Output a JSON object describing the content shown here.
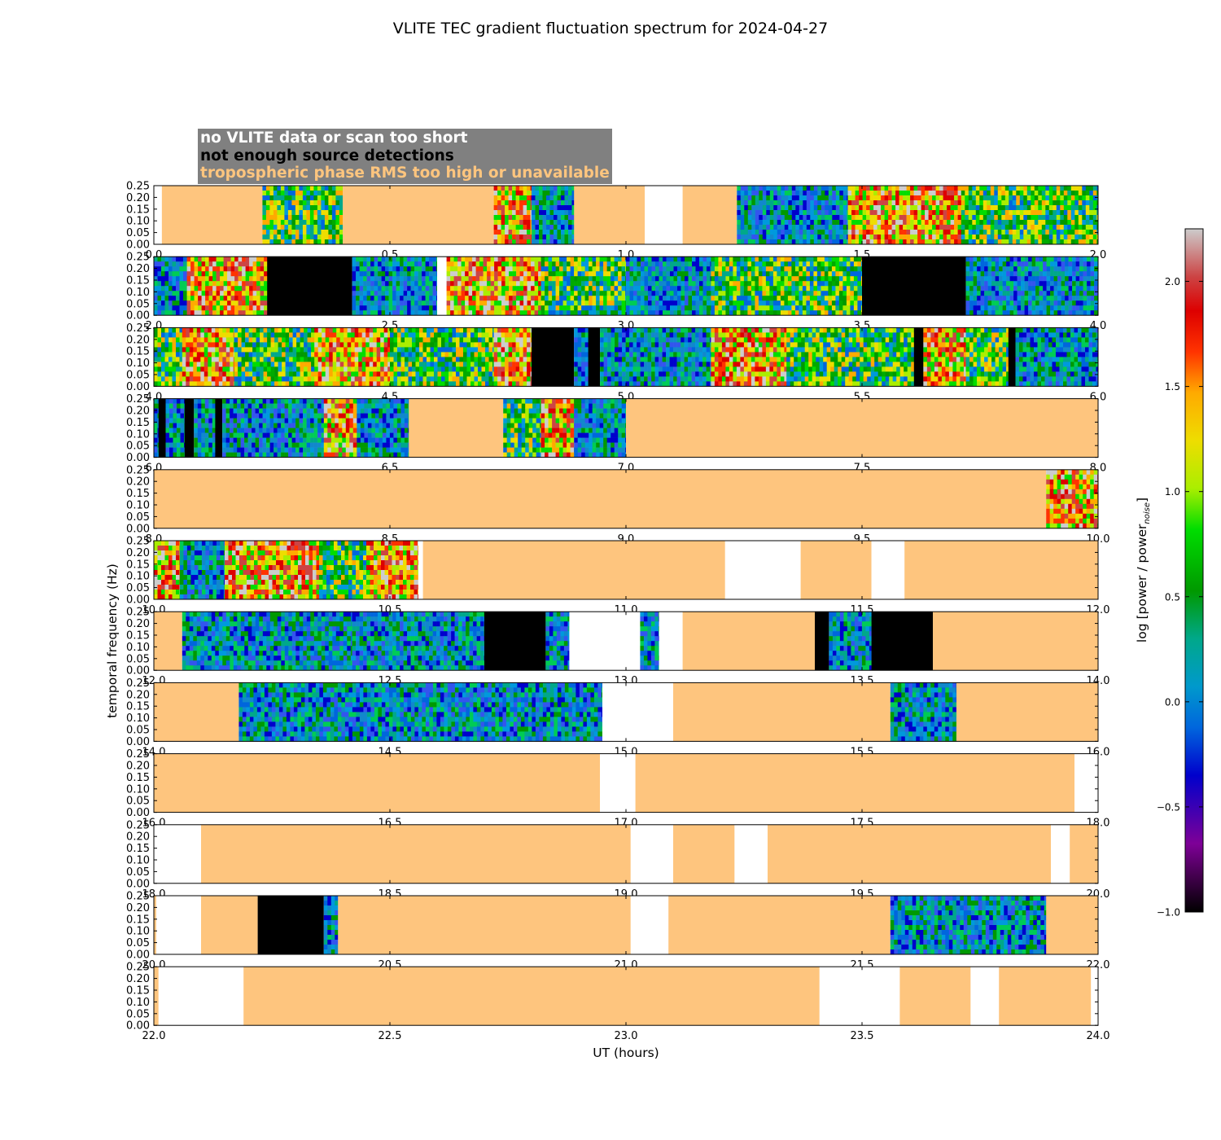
{
  "title": "VLITE TEC gradient fluctuation spectrum for 2024-04-27",
  "legend": [
    {
      "label": "no VLITE data or scan too short",
      "color": "#ffffff"
    },
    {
      "label": "not enough source detections",
      "color": "#000000"
    },
    {
      "label": "tropospheric phase RMS too high or unavailable",
      "color": "#fec57e"
    }
  ],
  "chart_data": {
    "type": "heatmap",
    "title": "VLITE TEC gradient fluctuation spectrum for 2024-04-27",
    "xlabel": "UT (hours)",
    "ylabel": "temporal frequency (Hz)",
    "ylim": [
      0,
      0.25
    ],
    "y_ticks": [
      "0.00",
      "0.05",
      "0.10",
      "0.15",
      "0.20",
      "0.25"
    ],
    "colorbar": {
      "label": "log [power / power",
      "label_sub": "noise",
      "label_end": "]",
      "range": [
        -1.0,
        2.25
      ],
      "ticks": [
        "−1.0",
        "−0.5",
        "0.0",
        "0.5",
        "1.0",
        "1.5",
        "2.0"
      ],
      "tick_values": [
        -1.0,
        -0.5,
        0.0,
        0.5,
        1.0,
        1.5,
        2.0
      ]
    },
    "state_colors": {
      "no_data": "#ffffff",
      "no_detections": "#000000",
      "tropo": "#fec57e"
    },
    "panels": [
      {
        "x_start": 0,
        "x_end": 2,
        "x_ticks": [
          "0.0",
          "0.5",
          "1.0",
          "1.5",
          "2.0"
        ],
        "segments": [
          [
            "nodata",
            0,
            0.017
          ],
          [
            "tropo",
            0.017,
            0.23
          ],
          [
            "data",
            0.23,
            0.4,
            1
          ],
          [
            "tropo",
            0.4,
            0.72
          ],
          [
            "data",
            0.72,
            0.8,
            2
          ],
          [
            "data",
            0.8,
            0.89,
            0
          ],
          [
            "tropo",
            0.89,
            1.04
          ],
          [
            "nodata",
            1.04,
            1.12
          ],
          [
            "tropo",
            1.12,
            1.235
          ],
          [
            "data",
            1.235,
            1.47,
            0
          ],
          [
            "data",
            1.47,
            1.71,
            2
          ],
          [
            "data",
            1.71,
            2.0,
            1
          ]
        ]
      },
      {
        "x_start": 2,
        "x_end": 4,
        "x_ticks": [
          "2.0",
          "2.5",
          "3.0",
          "3.5",
          "4.0"
        ],
        "segments": [
          [
            "data",
            2.0,
            2.07,
            0
          ],
          [
            "data",
            2.07,
            2.24,
            2
          ],
          [
            "nodet",
            2.24,
            2.42
          ],
          [
            "data",
            2.42,
            2.6,
            0
          ],
          [
            "nodata",
            2.6,
            2.62
          ],
          [
            "data",
            2.62,
            2.82,
            2
          ],
          [
            "data",
            2.82,
            3.0,
            1
          ],
          [
            "data",
            3.0,
            3.18,
            0
          ],
          [
            "data",
            3.18,
            3.5,
            1
          ],
          [
            "nodet",
            3.5,
            3.72
          ],
          [
            "data",
            3.72,
            4.0,
            0
          ]
        ]
      },
      {
        "x_start": 4,
        "x_end": 6,
        "x_ticks": [
          "4.0",
          "4.5",
          "5.0",
          "5.5",
          "6.0"
        ],
        "segments": [
          [
            "data",
            4.0,
            4.06,
            1
          ],
          [
            "data",
            4.06,
            4.17,
            2
          ],
          [
            "data",
            4.17,
            4.34,
            1
          ],
          [
            "data",
            4.34,
            4.5,
            2
          ],
          [
            "data",
            4.5,
            4.72,
            1
          ],
          [
            "data",
            4.72,
            4.8,
            2
          ],
          [
            "nodet",
            4.8,
            4.89
          ],
          [
            "data",
            4.89,
            4.92,
            0
          ],
          [
            "nodet",
            4.92,
            4.945
          ],
          [
            "data",
            4.945,
            5.18,
            0
          ],
          [
            "data",
            5.18,
            5.34,
            2
          ],
          [
            "data",
            5.34,
            5.61,
            1
          ],
          [
            "nodet",
            5.61,
            5.63
          ],
          [
            "data",
            5.63,
            5.72,
            2
          ],
          [
            "data",
            5.72,
            5.81,
            1
          ],
          [
            "nodet",
            5.81,
            5.825
          ],
          [
            "data",
            5.825,
            6.0,
            0
          ]
        ]
      },
      {
        "x_start": 6,
        "x_end": 8,
        "x_ticks": [
          "6.0",
          "6.5",
          "7.0",
          "7.5",
          "8.0"
        ],
        "segments": [
          [
            "data",
            6.0,
            6.01,
            0
          ],
          [
            "nodet",
            6.01,
            6.025
          ],
          [
            "data",
            6.025,
            6.065,
            0
          ],
          [
            "nodet",
            6.065,
            6.085
          ],
          [
            "data",
            6.085,
            6.13,
            0
          ],
          [
            "nodet",
            6.13,
            6.145
          ],
          [
            "data",
            6.145,
            6.36,
            0
          ],
          [
            "data",
            6.36,
            6.43,
            2
          ],
          [
            "data",
            6.43,
            6.54,
            0
          ],
          [
            "tropo",
            6.54,
            6.74
          ],
          [
            "data",
            6.74,
            6.82,
            1
          ],
          [
            "data",
            6.82,
            6.89,
            2
          ],
          [
            "data",
            6.89,
            7.0,
            0
          ],
          [
            "tropo",
            7.0,
            8.0
          ]
        ]
      },
      {
        "x_start": 8,
        "x_end": 10,
        "x_ticks": [
          "8.0",
          "8.5",
          "9.0",
          "9.5",
          "10.0"
        ],
        "segments": [
          [
            "tropo",
            8.0,
            9.89
          ],
          [
            "data",
            9.89,
            10.0,
            2
          ]
        ]
      },
      {
        "x_start": 10,
        "x_end": 12,
        "x_ticks": [
          "10.0",
          "10.5",
          "11.0",
          "11.5",
          "12.0"
        ],
        "segments": [
          [
            "data",
            10.0,
            10.055,
            2
          ],
          [
            "data",
            10.055,
            10.15,
            0
          ],
          [
            "data",
            10.15,
            10.35,
            2
          ],
          [
            "data",
            10.35,
            10.45,
            1
          ],
          [
            "data",
            10.45,
            10.56,
            2
          ],
          [
            "nodata",
            10.56,
            10.57
          ],
          [
            "tropo",
            10.57,
            11.21
          ],
          [
            "nodata",
            11.21,
            11.37
          ],
          [
            "tropo",
            11.37,
            11.52
          ],
          [
            "nodata",
            11.52,
            11.59
          ],
          [
            "tropo",
            11.59,
            12.0
          ]
        ]
      },
      {
        "x_start": 12,
        "x_end": 14,
        "x_ticks": [
          "12.0",
          "12.5",
          "13.0",
          "13.5",
          "14.0"
        ],
        "segments": [
          [
            "tropo",
            12.0,
            12.06
          ],
          [
            "data",
            12.06,
            12.42,
            0
          ],
          [
            "data",
            12.42,
            12.7,
            0
          ],
          [
            "nodet",
            12.7,
            12.83
          ],
          [
            "data",
            12.83,
            12.88,
            0
          ],
          [
            "nodata",
            12.88,
            13.03
          ],
          [
            "data",
            13.03,
            13.07,
            0
          ],
          [
            "nodata",
            13.07,
            13.12
          ],
          [
            "tropo",
            13.12,
            13.4
          ],
          [
            "nodet",
            13.4,
            13.43
          ],
          [
            "data",
            13.43,
            13.52,
            0
          ],
          [
            "nodet",
            13.52,
            13.65
          ],
          [
            "tropo",
            13.65,
            14.0
          ]
        ]
      },
      {
        "x_start": 14,
        "x_end": 16,
        "x_ticks": [
          "14.0",
          "14.5",
          "15.0",
          "15.5",
          "16.0"
        ],
        "segments": [
          [
            "tropo",
            14.0,
            14.18
          ],
          [
            "data",
            14.18,
            14.95,
            0
          ],
          [
            "nodata",
            14.95,
            15.1
          ],
          [
            "tropo",
            15.1,
            15.56
          ],
          [
            "data",
            15.56,
            15.7,
            0
          ],
          [
            "tropo",
            15.7,
            16.0
          ]
        ]
      },
      {
        "x_start": 16,
        "x_end": 18,
        "x_ticks": [
          "16.0",
          "16.5",
          "17.0",
          "17.5",
          "18.0"
        ],
        "segments": [
          [
            "tropo",
            16.0,
            16.945
          ],
          [
            "nodata",
            16.945,
            17.02
          ],
          [
            "tropo",
            17.02,
            17.95
          ],
          [
            "nodata",
            17.95,
            18.0
          ]
        ]
      },
      {
        "x_start": 18,
        "x_end": 20,
        "x_ticks": [
          "18.0",
          "18.5",
          "19.0",
          "19.5",
          "20.0"
        ],
        "segments": [
          [
            "nodata",
            18.0,
            18.1
          ],
          [
            "tropo",
            18.1,
            19.01
          ],
          [
            "nodata",
            19.01,
            19.1
          ],
          [
            "tropo",
            19.1,
            19.23
          ],
          [
            "nodata",
            19.23,
            19.3
          ],
          [
            "tropo",
            19.3,
            19.9
          ],
          [
            "nodata",
            19.9,
            19.94
          ],
          [
            "tropo",
            19.94,
            20.0
          ]
        ]
      },
      {
        "x_start": 20,
        "x_end": 22,
        "x_ticks": [
          "20.0",
          "20.5",
          "21.0",
          "21.5",
          "22.0"
        ],
        "segments": [
          [
            "tropo",
            20.0,
            20.005
          ],
          [
            "nodata",
            20.005,
            20.1
          ],
          [
            "tropo",
            20.1,
            20.22
          ],
          [
            "nodet",
            20.22,
            20.36
          ],
          [
            "data",
            20.36,
            20.39,
            0
          ],
          [
            "tropo",
            20.39,
            21.01
          ],
          [
            "nodata",
            21.01,
            21.09
          ],
          [
            "tropo",
            21.09,
            21.56
          ],
          [
            "data",
            21.56,
            21.89,
            0
          ],
          [
            "tropo",
            21.89,
            22.0
          ]
        ]
      },
      {
        "x_start": 22,
        "x_end": 24,
        "x_ticks": [
          "22.0",
          "22.5",
          "23.0",
          "23.5",
          "24.0"
        ],
        "segments": [
          [
            "tropo",
            22.0,
            22.01
          ],
          [
            "nodata",
            22.01,
            22.19
          ],
          [
            "tropo",
            22.19,
            23.41
          ],
          [
            "nodata",
            23.41,
            23.58
          ],
          [
            "tropo",
            23.58,
            23.73
          ],
          [
            "nodata",
            23.73,
            23.79
          ],
          [
            "tropo",
            23.79,
            23.985
          ],
          [
            "nodata",
            23.985,
            24.0
          ]
        ]
      }
    ]
  }
}
